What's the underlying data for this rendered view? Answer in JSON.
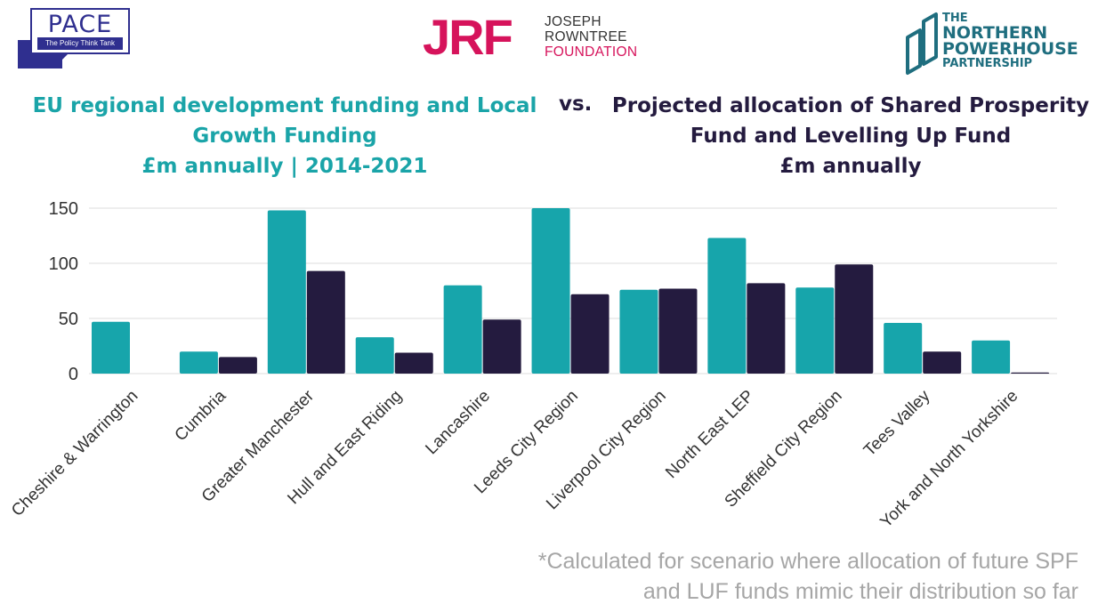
{
  "logos": {
    "pace": {
      "name": "PACE",
      "tagline": "The Policy Think Tank"
    },
    "jrf": {
      "mark": "JRF",
      "line1": "JOSEPH",
      "line2": "ROWNTREE",
      "line3": "FOUNDATION"
    },
    "npp": {
      "line1": "THE",
      "line2": "NORTHERN",
      "line3": "POWERHOUSE",
      "line4": "PARTNERSHIP"
    }
  },
  "titles": {
    "left": [
      "EU regional development funding and Local",
      "Growth Funding",
      "£m annually | 2014-2021"
    ],
    "vs": "vs.",
    "right": [
      "Projected allocation of Shared Prosperity",
      "Fund and Levelling Up Fund",
      "£m annually"
    ]
  },
  "footnote": [
    "*Calculated for scenario where allocation of future SPF",
    "and LUF funds mimic their distribution so far"
  ],
  "colors": {
    "series1": "#17a5ab",
    "series2": "#241b3f",
    "grid": "#dcdcdc",
    "tick": "#333333"
  },
  "chart_data": {
    "type": "bar",
    "categories": [
      "Cheshire & Warrington",
      "Cumbria",
      "Greater Manchester",
      "Hull and East Riding",
      "Lancashire",
      "Leeds City Region",
      "Liverpool City Region",
      "North East LEP",
      "Sheffield City Region",
      "Tees Valley",
      "York and North Yorkshire"
    ],
    "series": [
      {
        "values": [
          47,
          20,
          148,
          33,
          80,
          150,
          76,
          123,
          78,
          46,
          30
        ]
      },
      {
        "values": [
          0,
          15,
          93,
          19,
          49,
          72,
          77,
          82,
          99,
          20,
          1
        ]
      }
    ],
    "yticks": [
      0,
      50,
      100,
      150
    ],
    "ylim": [
      0,
      150
    ],
    "grid": true
  }
}
